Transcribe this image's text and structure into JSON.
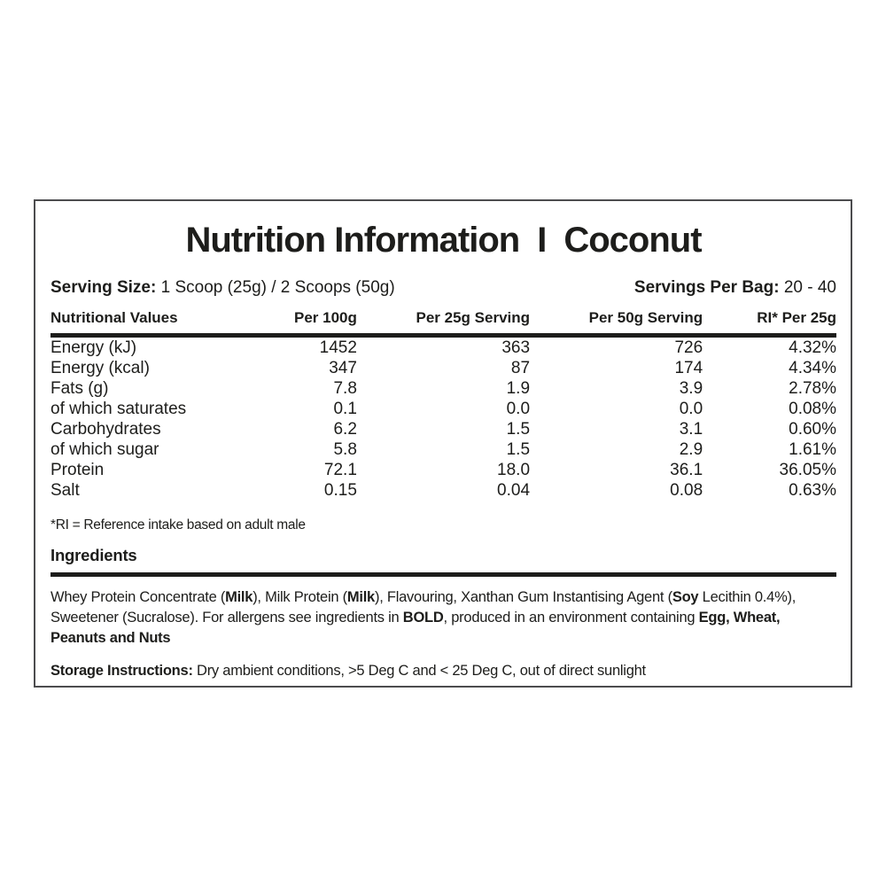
{
  "label": {
    "title": {
      "left": "Nutrition Information",
      "separator": "I",
      "right": "Coconut"
    },
    "serving": {
      "size_label": "Serving Size:",
      "size_value": " 1 Scoop (25g) / 2 Scoops (50g)",
      "per_bag_label": "Servings Per Bag:",
      "per_bag_value": " 20 - 40"
    },
    "table": {
      "headers": [
        "Nutritional Values",
        "Per 100g",
        "Per 25g Serving",
        "Per 50g Serving",
        "RI* Per 25g"
      ],
      "rows": [
        {
          "name": "Energy (kJ)",
          "per_100g": "1452",
          "per_25g": "363",
          "per_50g": "726",
          "ri": "4.32%"
        },
        {
          "name": "Energy (kcal)",
          "per_100g": "347",
          "per_25g": "87",
          "per_50g": "174",
          "ri": "4.34%"
        },
        {
          "name": "Fats (g)",
          "per_100g": "7.8",
          "per_25g": "1.9",
          "per_50g": "3.9",
          "ri": "2.78%"
        },
        {
          "name": "of which saturates",
          "per_100g": "0.1",
          "per_25g": "0.0",
          "per_50g": "0.0",
          "ri": "0.08%"
        },
        {
          "name": "Carbohydrates",
          "per_100g": "6.2",
          "per_25g": "1.5",
          "per_50g": "3.1",
          "ri": "0.60%"
        },
        {
          "name": "of which sugar",
          "per_100g": "5.8",
          "per_25g": "1.5",
          "per_50g": "2.9",
          "ri": "1.61%"
        },
        {
          "name": "Protein",
          "per_100g": "72.1",
          "per_25g": "18.0",
          "per_50g": "36.1",
          "ri": "36.05%"
        },
        {
          "name": "Salt",
          "per_100g": "0.15",
          "per_25g": "0.04",
          "per_50g": "0.08",
          "ri": "0.63%"
        }
      ]
    },
    "ri_note": "*RI = Reference intake based on adult male",
    "ingredients": {
      "heading": "Ingredients",
      "segments": [
        {
          "text": "Whey Protein Concentrate (",
          "bold": false
        },
        {
          "text": "Milk",
          "bold": true
        },
        {
          "text": "), Milk Protein (",
          "bold": false
        },
        {
          "text": "Milk",
          "bold": true
        },
        {
          "text": "), Flavouring, Xanthan Gum Instantising Agent (",
          "bold": false
        },
        {
          "text": "Soy",
          "bold": true
        },
        {
          "text": " Lecithin 0.4%), Sweetener (Sucralose). For allergens see ingredients in ",
          "bold": false
        },
        {
          "text": "BOLD",
          "bold": true
        },
        {
          "text": ", produced in an environment containing ",
          "bold": false
        },
        {
          "text": "Egg, Wheat, Peanuts and Nuts",
          "bold": true
        }
      ]
    },
    "storage": {
      "label": "Storage Instructions:",
      "text": " Dry ambient conditions, >5 Deg C and < 25 Deg C,  out of direct sunlight"
    }
  }
}
